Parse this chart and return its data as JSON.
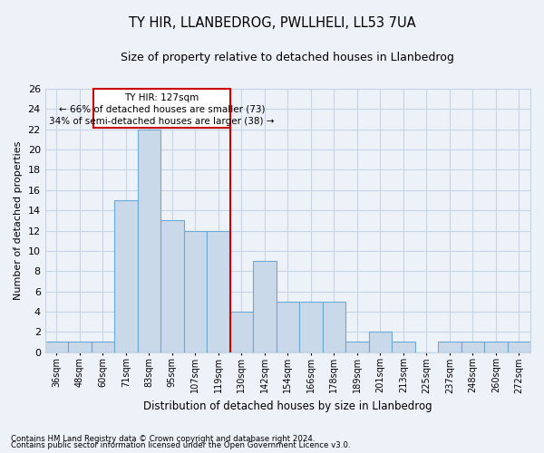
{
  "title": "TY HIR, LLANBEDROG, PWLLHELI, LL53 7UA",
  "subtitle": "Size of property relative to detached houses in Llanbedrog",
  "xlabel": "Distribution of detached houses by size in Llanbedrog",
  "ylabel": "Number of detached properties",
  "categories": [
    "36sqm",
    "48sqm",
    "60sqm",
    "71sqm",
    "83sqm",
    "95sqm",
    "107sqm",
    "119sqm",
    "130sqm",
    "142sqm",
    "154sqm",
    "166sqm",
    "178sqm",
    "189sqm",
    "201sqm",
    "213sqm",
    "225sqm",
    "237sqm",
    "248sqm",
    "260sqm",
    "272sqm"
  ],
  "values": [
    1,
    1,
    1,
    15,
    22,
    13,
    12,
    12,
    4,
    9,
    5,
    5,
    5,
    1,
    2,
    1,
    0,
    1,
    1,
    1,
    1
  ],
  "bar_color": "#c9d9ea",
  "bar_edge_color": "#6aaad4",
  "vline_x_index": 8,
  "annotation_line1": "TY HIR: 127sqm",
  "annotation_line2": "← 66% of detached houses are smaller (73)",
  "annotation_line3": "34% of semi-detached houses are larger (38) →",
  "annotation_box_color": "#cc0000",
  "ylim": [
    0,
    26
  ],
  "yticks": [
    0,
    2,
    4,
    6,
    8,
    10,
    12,
    14,
    16,
    18,
    20,
    22,
    24,
    26
  ],
  "grid_color": "#c8d4e3",
  "background_color": "#edf2f9",
  "footer1": "Contains HM Land Registry data © Crown copyright and database right 2024.",
  "footer2": "Contains public sector information licensed under the Open Government Licence v3.0."
}
